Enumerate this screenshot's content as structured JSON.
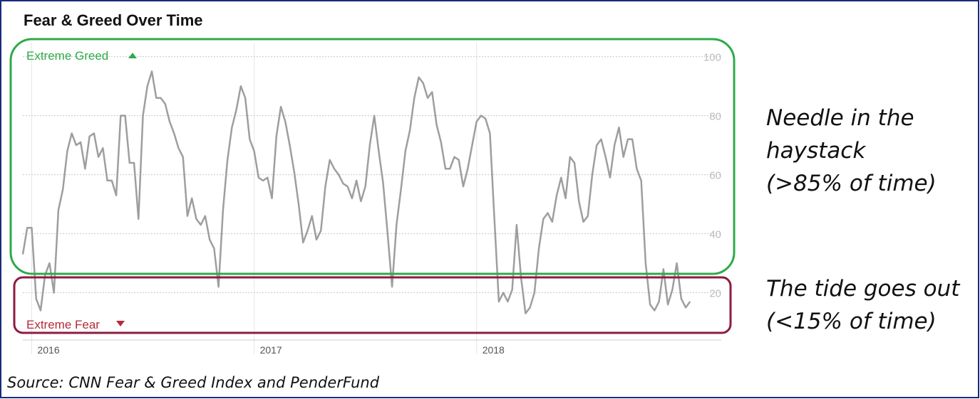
{
  "chart_data": {
    "type": "line",
    "title": "Fear & Greed Over Time",
    "x": [
      2015.96,
      2015.98,
      2016.0,
      2016.02,
      2016.04,
      2016.06,
      2016.08,
      2016.1,
      2016.12,
      2016.14,
      2016.16,
      2016.18,
      2016.2,
      2016.22,
      2016.24,
      2016.26,
      2016.28,
      2016.3,
      2016.32,
      2016.34,
      2016.36,
      2016.38,
      2016.4,
      2016.42,
      2016.44,
      2016.46,
      2016.48,
      2016.5,
      2016.52,
      2016.54,
      2016.56,
      2016.58,
      2016.6,
      2016.62,
      2016.64,
      2016.66,
      2016.68,
      2016.7,
      2016.72,
      2016.74,
      2016.76,
      2016.78,
      2016.8,
      2016.82,
      2016.84,
      2016.86,
      2016.88,
      2016.9,
      2016.92,
      2016.94,
      2016.96,
      2016.98,
      2017.0,
      2017.02,
      2017.04,
      2017.06,
      2017.08,
      2017.1,
      2017.12,
      2017.14,
      2017.16,
      2017.18,
      2017.2,
      2017.22,
      2017.24,
      2017.26,
      2017.28,
      2017.3,
      2017.32,
      2017.34,
      2017.36,
      2017.38,
      2017.4,
      2017.42,
      2017.44,
      2017.46,
      2017.48,
      2017.5,
      2017.52,
      2017.54,
      2017.56,
      2017.58,
      2017.6,
      2017.62,
      2017.64,
      2017.66,
      2017.68,
      2017.7,
      2017.72,
      2017.74,
      2017.76,
      2017.78,
      2017.8,
      2017.82,
      2017.84,
      2017.86,
      2017.88,
      2017.9,
      2017.92,
      2017.94,
      2017.96,
      2017.98,
      2018.0,
      2018.02,
      2018.04,
      2018.06,
      2018.08,
      2018.1,
      2018.12,
      2018.14,
      2018.16,
      2018.18,
      2018.2,
      2018.22,
      2018.24,
      2018.26,
      2018.28,
      2018.3,
      2018.32,
      2018.34,
      2018.36,
      2018.38,
      2018.4,
      2018.42,
      2018.44,
      2018.46,
      2018.48,
      2018.5,
      2018.52,
      2018.54,
      2018.56,
      2018.58,
      2018.6,
      2018.62,
      2018.64,
      2018.66,
      2018.68,
      2018.7,
      2018.72,
      2018.74,
      2018.76,
      2018.78,
      2018.8,
      2018.82,
      2018.84,
      2018.86,
      2018.88,
      2018.9,
      2018.92,
      2018.94,
      2018.96
    ],
    "values": [
      33,
      42,
      42,
      18,
      14,
      26,
      30,
      20,
      48,
      55,
      68,
      74,
      70,
      71,
      62,
      73,
      74,
      66,
      69,
      58,
      58,
      53,
      80,
      80,
      64,
      64,
      45,
      80,
      90,
      95,
      86,
      86,
      84,
      78,
      74,
      69,
      66,
      46,
      52,
      45,
      43,
      46,
      38,
      35,
      22,
      48,
      65,
      76,
      82,
      90,
      86,
      72,
      68,
      59,
      58,
      59,
      52,
      73,
      83,
      78,
      70,
      61,
      50,
      37,
      41,
      46,
      38,
      41,
      56,
      65,
      62,
      60,
      57,
      56,
      52,
      58,
      51,
      56,
      70,
      80,
      68,
      57,
      40,
      22,
      43,
      55,
      68,
      75,
      86,
      93,
      91,
      86,
      88,
      77,
      71,
      62,
      62,
      66,
      65,
      56,
      62,
      70,
      78,
      80,
      79,
      74,
      45,
      17,
      20,
      17,
      21,
      43,
      25,
      13,
      15,
      20,
      35,
      45,
      47,
      44,
      53,
      59,
      52,
      66,
      64,
      51,
      44,
      46,
      60,
      70,
      72,
      66,
      59,
      70,
      76,
      66,
      72,
      72,
      62,
      58,
      30,
      16,
      14,
      17,
      28,
      16,
      21,
      30,
      18,
      15,
      17
    ],
    "color": "#9e9e9e",
    "xlim": [
      2015.96,
      2019.1
    ],
    "xticks": [
      2016,
      2017,
      2018
    ],
    "ylim": [
      4,
      104
    ],
    "yticks": [
      20,
      40,
      60,
      80,
      100
    ],
    "grid": true,
    "zones": [
      {
        "label": "Extreme Greed",
        "color": "#2eaa4a"
      },
      {
        "label": "Extreme Fear",
        "color": "#b52a3a"
      }
    ]
  },
  "annotations": [
    [
      "Needle in the",
      "haystack",
      "(>85% of time)"
    ],
    [
      "The tide goes out",
      "(<15% of time)"
    ]
  ],
  "source": "Source: CNN Fear & Greed Index and PenderFund"
}
